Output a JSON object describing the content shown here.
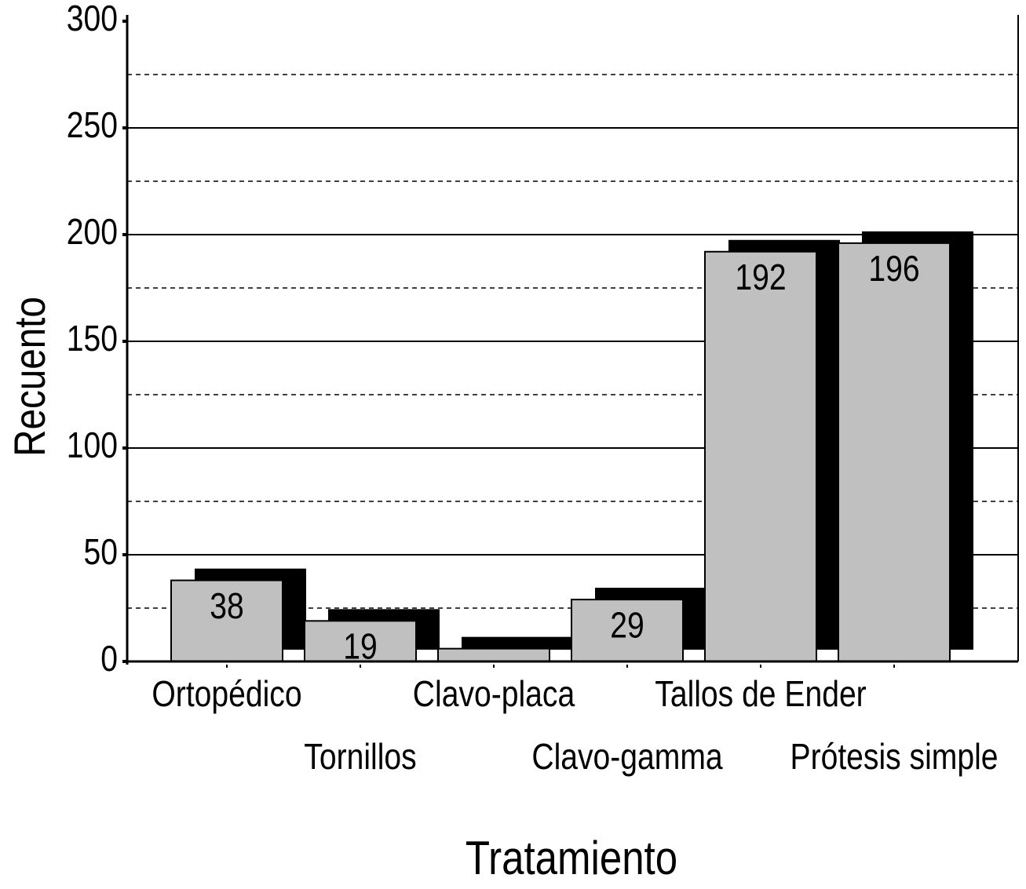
{
  "chart_data": {
    "type": "bar",
    "x_label": "Tratamiento",
    "y_label": "Recuento",
    "categories": [
      "Ortopédico",
      "Tornillos",
      "Clavo-placa",
      "Clavo-gamma",
      "Tallos de Ender",
      "Prótesis simple"
    ],
    "values": [
      38,
      19,
      6,
      29,
      192,
      196
    ],
    "value_labels": [
      "38",
      "19",
      null,
      "29",
      "192",
      "196"
    ],
    "color": "#c0c0c0",
    "shadow_color": "#000000",
    "ylim": [
      0,
      300
    ],
    "yticks": [
      0,
      50,
      100,
      150,
      200,
      250,
      300
    ],
    "minor_yticks": [
      25,
      75,
      125,
      175,
      225,
      275
    ],
    "grid": true
  }
}
